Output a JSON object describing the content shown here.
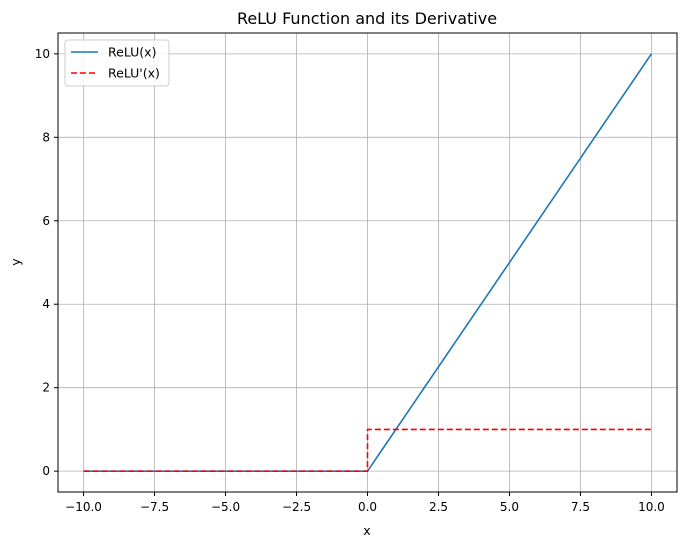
{
  "chart_data": {
    "type": "line",
    "title": "ReLU Function and its Derivative",
    "xlabel": "x",
    "ylabel": "y",
    "xlim": [
      -10.9,
      10.9
    ],
    "ylim": [
      -0.5,
      10.5
    ],
    "xticks": [
      -10.0,
      -7.5,
      -5.0,
      -2.5,
      0.0,
      2.5,
      5.0,
      7.5,
      10.0
    ],
    "xtick_labels": [
      "−10.0",
      "−7.5",
      "−5.0",
      "−2.5",
      "0.0",
      "2.5",
      "5.0",
      "7.5",
      "10.0"
    ],
    "yticks": [
      0,
      2,
      4,
      6,
      8,
      10
    ],
    "ytick_labels": [
      "0",
      "2",
      "4",
      "6",
      "8",
      "10"
    ],
    "grid": true,
    "legend_position": "top-left",
    "series": [
      {
        "name": "ReLU(x)",
        "color": "#1f77b4",
        "dash": "solid",
        "x": [
          -10,
          0,
          10
        ],
        "y": [
          0,
          0,
          10
        ]
      },
      {
        "name": "ReLU'(x)",
        "color": "#ff0000",
        "dash": "dashed",
        "x": [
          -10,
          0,
          0,
          10
        ],
        "y": [
          0,
          0,
          1,
          1
        ]
      }
    ]
  }
}
